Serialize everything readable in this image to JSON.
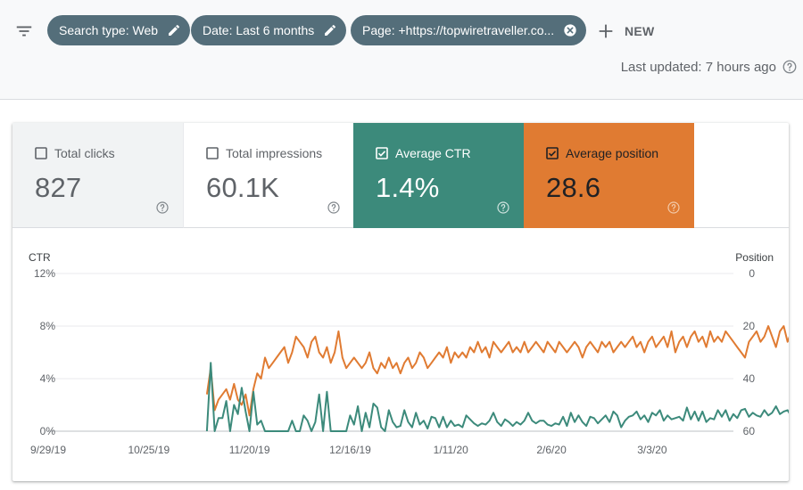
{
  "toolbar": {
    "filters": [
      {
        "label": "Search type: Web",
        "action": "edit"
      },
      {
        "label": "Date: Last 6 months",
        "action": "edit"
      },
      {
        "label": "Page: +https://topwiretraveller.co...",
        "action": "remove"
      }
    ],
    "new_label": "NEW",
    "last_updated": "Last updated: 7 hours ago"
  },
  "metrics": [
    {
      "label": "Total clicks",
      "value": "827",
      "checked": false
    },
    {
      "label": "Total impressions",
      "value": "60.1K",
      "checked": false
    },
    {
      "label": "Average CTR",
      "value": "1.4%",
      "checked": true
    },
    {
      "label": "Average position",
      "value": "28.6",
      "checked": true
    }
  ],
  "colors": {
    "ctr": "#3c8a7b",
    "position": "#e07b32",
    "chip": "#546e7a",
    "grid": "#e8eaed"
  },
  "chart_data": {
    "type": "line",
    "title": "",
    "left_axis_label": "CTR",
    "right_axis_label": "Position",
    "left_ticks": [
      "12%",
      "8%",
      "4%",
      "0%"
    ],
    "left_tick_values": [
      12,
      8,
      4,
      0
    ],
    "right_ticks": [
      "0",
      "20",
      "40",
      "60"
    ],
    "right_tick_values": [
      0,
      20,
      40,
      60
    ],
    "ylim_left": [
      0,
      12
    ],
    "ylim_right": [
      0,
      60
    ],
    "right_axis_inverted": true,
    "x_tick_labels": [
      "9/29/19",
      "10/25/19",
      "11/20/19",
      "12/16/19",
      "1/11/20",
      "2/6/20",
      "3/3/20"
    ],
    "x_range": [
      "9/29/19",
      "3/24/20"
    ],
    "grid": true,
    "series": [
      {
        "name": "Average CTR",
        "axis": "left",
        "start_date": "11/9/19",
        "values": [
          0,
          5.2,
          0,
          1,
          1,
          2.3,
          0,
          2,
          1.3,
          3.3,
          1.5,
          0,
          3,
          0.5,
          0.8,
          0,
          0,
          0,
          0,
          0,
          0,
          0,
          0.8,
          0,
          0,
          1.2,
          0.8,
          0,
          0.7,
          2.8,
          0,
          3,
          0,
          0,
          0,
          0,
          0,
          1.2,
          0.5,
          1.9,
          0,
          1.4,
          0.3,
          2.1,
          1.8,
          0.3,
          0,
          1.6,
          0.7,
          0.3,
          0.4,
          1.6,
          0.7,
          0.3,
          1.4,
          0.5,
          0.8,
          0.2,
          1.1,
          1,
          0.3,
          1.1,
          0.3,
          0.8,
          0.4,
          0.5,
          0.3,
          1.2,
          0.9,
          0.6,
          0.4,
          0.6,
          0.5,
          0.8,
          1.4,
          0.7,
          0.4,
          0.9,
          0.7,
          0.4,
          0.7,
          0.5,
          0.8,
          1.4,
          0.8,
          0.6,
          0.8,
          0.8,
          0.5,
          0.4,
          0.6,
          0.5,
          1.1,
          0.4,
          1.4,
          0.7,
          1.2,
          0.7,
          0.4,
          1.1,
          1,
          0.6,
          0.9,
          1.2,
          0.7,
          1.5,
          1.2,
          0.3,
          0.8,
          1.1,
          1.2,
          1.5,
          0.9,
          1.2,
          0.7,
          1.4,
          1.2,
          1.6,
          0.8,
          1.2,
          0.9,
          1,
          1.1,
          0.8,
          1.8,
          0.9,
          1.5,
          0.8,
          1.5,
          0.7,
          1,
          0.9,
          1.6,
          1.1,
          1.6,
          0.8,
          1.3,
          1,
          1.6,
          1.7,
          1.1,
          1.4,
          1.2,
          1.1,
          1.6,
          1.2,
          1.4,
          1.9,
          1.3,
          1.5,
          1.6,
          1.1,
          1.7,
          1.5,
          1.2,
          1.5,
          1.4,
          1.6,
          1.5,
          1.2,
          1.6,
          1.3,
          1.7,
          1.2,
          1.6,
          1.3,
          1.2,
          1.5,
          1.6,
          1.4,
          1.2,
          1.3,
          1.4,
          1.6,
          1.4,
          1.5,
          1.5,
          1.6,
          1.6,
          1.3,
          1.2,
          1.6,
          1.6,
          1.2,
          1.3,
          1.4,
          1.5,
          1.6,
          1.4,
          1.6,
          2,
          2,
          1.4,
          2.1,
          1.3,
          1.5,
          1.9,
          1.4,
          1.5,
          2,
          2.1,
          1.7
        ]
      },
      {
        "name": "Average position",
        "axis": "right",
        "start_date": "11/9/19",
        "values": [
          46,
          36,
          52,
          48,
          46,
          44,
          48,
          42,
          48,
          50,
          46,
          54,
          44,
          38,
          40,
          32,
          36,
          34,
          32,
          30,
          28,
          34,
          30,
          24,
          26,
          28,
          32,
          26,
          24,
          30,
          32,
          28,
          34,
          30,
          22,
          32,
          36,
          34,
          32,
          34,
          36,
          34,
          30,
          36,
          38,
          34,
          36,
          32,
          36,
          34,
          38,
          34,
          32,
          36,
          34,
          30,
          32,
          36,
          34,
          32,
          30,
          32,
          28,
          34,
          30,
          32,
          30,
          32,
          28,
          30,
          26,
          30,
          28,
          32,
          26,
          28,
          30,
          28,
          26,
          30,
          28,
          30,
          26,
          30,
          28,
          26,
          28,
          30,
          26,
          28,
          30,
          26,
          28,
          30,
          28,
          26,
          28,
          32,
          28,
          26,
          28,
          30,
          26,
          28,
          26,
          30,
          28,
          26,
          28,
          26,
          24,
          28,
          26,
          30,
          26,
          24,
          28,
          26,
          24,
          28,
          22,
          30,
          26,
          24,
          28,
          24,
          22,
          26,
          24,
          28,
          22,
          26,
          24,
          26,
          22,
          24,
          26,
          28,
          30,
          32,
          26,
          24,
          22,
          26,
          24,
          20,
          24,
          28,
          22,
          20,
          26,
          22,
          20,
          24,
          26,
          22,
          28,
          24,
          20,
          22,
          26,
          24,
          22,
          26,
          22,
          24,
          28,
          20,
          24,
          26,
          22,
          20,
          26,
          22,
          24,
          26,
          20,
          22,
          24,
          28,
          22,
          20,
          24,
          22,
          26,
          22,
          20,
          24,
          28,
          20,
          22,
          26,
          20,
          24,
          22,
          20,
          18,
          22,
          20,
          22,
          24,
          26,
          22,
          20,
          24,
          22,
          20,
          22,
          24,
          22
        ]
      }
    ]
  }
}
